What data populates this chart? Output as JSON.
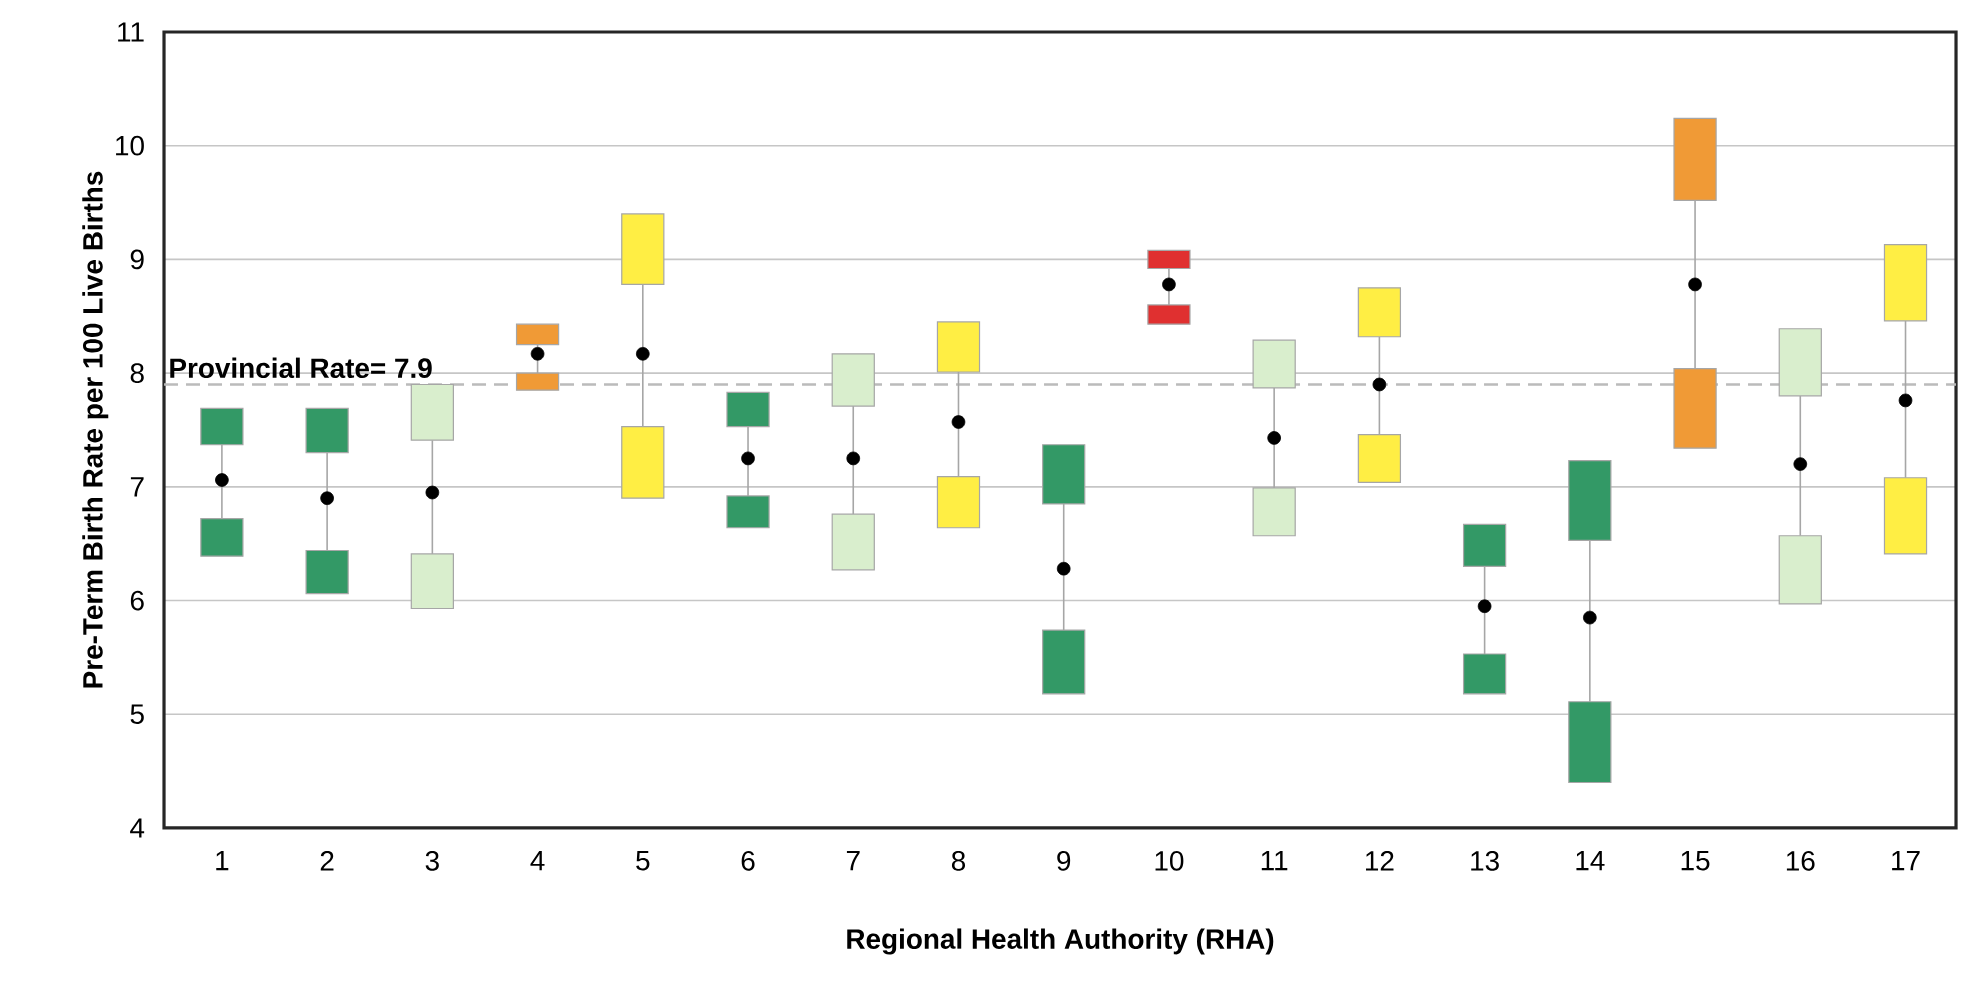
{
  "chart_data": {
    "type": "bar",
    "xlabel": "Regional Health Authority (RHA)",
    "ylabel": "Pre-Term Birth Rate per 100 Live Births",
    "categories": [
      "1",
      "2",
      "3",
      "4",
      "5",
      "6",
      "7",
      "8",
      "9",
      "10",
      "11",
      "12",
      "13",
      "14",
      "15",
      "16",
      "17"
    ],
    "series": [
      {
        "base": [
          6.39,
          6.06,
          5.93,
          7.85,
          6.9,
          6.64,
          6.27,
          6.64,
          5.18,
          8.43,
          6.57,
          7.04,
          5.18,
          4.4,
          7.34,
          5.97,
          6.41
        ],
        "values": [
          0.33,
          0.38,
          0.48,
          0.15,
          0.63,
          0.28,
          0.49,
          0.45,
          0.56,
          0.17,
          0.42,
          0.42,
          0.35,
          0.71,
          0.7,
          0.6,
          0.67
        ],
        "colors": [
          "#339966",
          "#339966",
          "#d9eecd",
          "#f09a36",
          "#ffee44",
          "#339966",
          "#d9eecd",
          "#ffee44",
          "#339966",
          "#e03030",
          "#d9eecd",
          "#ffee44",
          "#339966",
          "#339966",
          "#f09a36",
          "#d9eecd",
          "#ffee44"
        ]
      },
      {
        "base": [
          7.37,
          7.3,
          7.41,
          8.25,
          8.78,
          7.53,
          7.71,
          8.01,
          6.85,
          8.92,
          7.87,
          8.32,
          6.3,
          6.53,
          9.52,
          7.8,
          8.46
        ],
        "values": [
          0.32,
          0.39,
          0.49,
          0.18,
          0.62,
          0.3,
          0.46,
          0.44,
          0.52,
          0.16,
          0.42,
          0.43,
          0.37,
          0.7,
          0.72,
          0.59,
          0.67
        ],
        "colors": [
          "#339966",
          "#339966",
          "#d9eecd",
          "#f09a36",
          "#ffee44",
          "#339966",
          "#d9eecd",
          "#ffee44",
          "#339966",
          "#e03030",
          "#d9eecd",
          "#ffee44",
          "#339966",
          "#339966",
          "#f09a36",
          "#d9eecd",
          "#ffee44"
        ]
      },
      {
        "type": "scatter",
        "color": "#000000",
        "marker": "circle",
        "x": [
          "1",
          "2",
          "3",
          "4",
          "5",
          "6",
          "7",
          "8",
          "9",
          "10",
          "11",
          "12",
          "13",
          "14",
          "15",
          "16",
          "17"
        ],
        "values": [
          7.06,
          6.9,
          6.95,
          8.17,
          8.17,
          7.25,
          7.25,
          7.57,
          6.28,
          8.78,
          7.43,
          7.9,
          5.95,
          5.85,
          8.78,
          7.2,
          7.76
        ],
        "errors": [
          [
            6.72,
            7.37
          ],
          [
            6.44,
            7.3
          ],
          [
            6.41,
            7.41
          ],
          [
            8.0,
            8.25
          ],
          [
            7.53,
            8.78
          ],
          [
            6.92,
            7.53
          ],
          [
            6.76,
            7.71
          ],
          [
            7.09,
            8.01
          ],
          [
            5.74,
            6.85
          ],
          [
            8.6,
            8.92
          ],
          [
            6.99,
            7.87
          ],
          [
            7.46,
            8.32
          ],
          [
            5.53,
            6.3
          ],
          [
            5.11,
            6.53
          ],
          [
            8.04,
            9.52
          ],
          [
            6.57,
            7.8
          ],
          [
            7.08,
            8.46
          ]
        ]
      }
    ],
    "ylim": [
      4,
      11
    ],
    "yticks": [
      4,
      5,
      6,
      7,
      8,
      9,
      10,
      11
    ],
    "grid": "y",
    "ref_lines": [
      {
        "axis": "y",
        "value": 7.9,
        "label": "Provincial Rate=  7.9",
        "color": "#bbbbbb",
        "line_style": "dashed"
      }
    ]
  }
}
